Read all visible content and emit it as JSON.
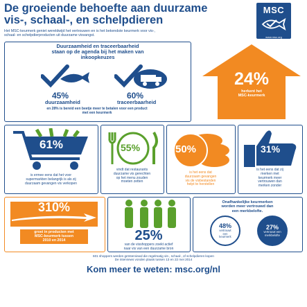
{
  "header": {
    "title_line1": "De groeiende behoefte aan duurzame",
    "title_line2": "vis-, schaal-, en schelpdieren",
    "subtitle_line1": "Het MSC-keurmerk geniet wereldwijd het vertrouwen en is het bekendste keurmerk voor vis-,",
    "subtitle_line2": "schaal- en schelpdierproducten uit duurzame visvangst."
  },
  "logo": {
    "name": "MSC",
    "url": "www.msc.org"
  },
  "agenda": {
    "heading_line1": "Duurzaamheid en traceerbaarheid",
    "heading_line2": "staan op de agenda bij het maken van",
    "heading_line3": "inkoopkeuzes",
    "left_pct": "45%",
    "left_label": "duurzaamheid",
    "right_pct": "60%",
    "right_label": "traceerbaarheid",
    "note_line1": "en 28% is bereid een beetje meer te betalen voor een product",
    "note_line2": "met een keurmerk"
  },
  "recognize": {
    "pct": "24%",
    "line1": "herkent het",
    "line2": "MSC-keurmerk"
  },
  "stats": {
    "s61": {
      "pct": "61%",
      "l1": "is ermee eens dat het voor",
      "l2": "supermarkten belangrijk is als zij",
      "l3": "duurzaam gevangen vis verkopen"
    },
    "s55": {
      "pct": "55%",
      "l1": "vindt dat restaurants",
      "l2": "duurzame vis gerechten",
      "l3": "op het menu zouden",
      "l4": "moeten zetten"
    },
    "s50": {
      "pct": "50%",
      "l1": "is het eens dat",
      "l2": "duurzaam gevangen",
      "l3": "vis de visbestanden",
      "l4": "helpt te herstellen"
    },
    "s31": {
      "pct": "31%",
      "l1": "is het eens dat zij",
      "l2": "merken met",
      "l3": "keurmerk meer",
      "l4": "vertrouwen dan",
      "l5": "merken zonder"
    },
    "s310": {
      "pct": "310%",
      "l1": "groei in producten met",
      "l2": "MSC-keurmerk tussen",
      "l3": "2010 en 2014"
    },
    "s25": {
      "pct": "25%",
      "l1": "van de visshoppers zoekt actief",
      "l2": "naar vis van een duurzame bron"
    }
  },
  "independent": {
    "heading_line1": "Onafhankelijke keurmerken",
    "heading_line2": "worden meer vertrouwd dan",
    "heading_line3": "een merkbelofte.",
    "left_pct": "48%",
    "left_l1": "vertrouwt",
    "left_l2": "een",
    "left_l3": "keurmerk",
    "right_pct": "27%",
    "right_l1": "vertrouwt een",
    "right_l2": "merkbelofte"
  },
  "footer": {
    "note_line1": "601 shoppers werden geïnterviewd die regelmatig vis-, schaal-, of schelpdieren kopen",
    "note_line2": "De interviews vonden plaats tussen 13 en 22 mei 2014",
    "cta": "Kom meer te weten: msc.org/nl"
  },
  "colors": {
    "blue": "#1f4e8c",
    "orange": "#f28a22",
    "green": "#5aa02c"
  }
}
